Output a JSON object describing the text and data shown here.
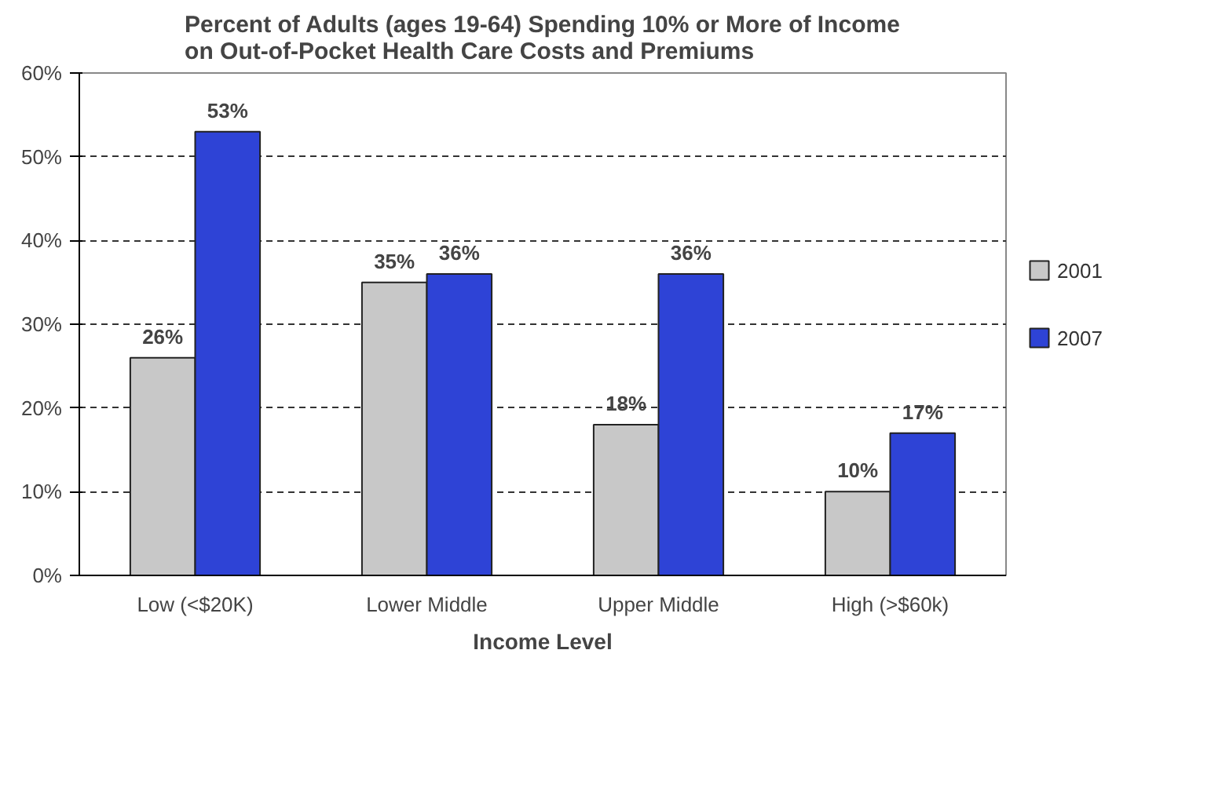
{
  "chart_data": {
    "type": "bar",
    "title": "Percent of Adults (ages 19-64) Spending 10% or More of Income\non Out-of-Pocket Health Care Costs and Premiums",
    "xlabel": "Income Level",
    "categories": [
      "Low (<$20K)",
      "Lower Middle",
      "Upper Middle",
      "High (>$60k)"
    ],
    "series": [
      {
        "name": "2001",
        "color": "#c8c8c8",
        "values": [
          26,
          35,
          18,
          10
        ],
        "value_labels": [
          "26%",
          "35%",
          "18%",
          "10%"
        ]
      },
      {
        "name": "2007",
        "color": "#2e43d6",
        "values": [
          53,
          36,
          36,
          17
        ],
        "value_labels": [
          "53%",
          "36%",
          "36%",
          "17%"
        ]
      }
    ],
    "ylim": [
      0,
      60
    ],
    "yticks": [
      {
        "value": 0,
        "label": "0%"
      },
      {
        "value": 10,
        "label": "10%"
      },
      {
        "value": 20,
        "label": "20%"
      },
      {
        "value": 30,
        "label": "30%"
      },
      {
        "value": 40,
        "label": "40%"
      },
      {
        "value": 50,
        "label": "50%"
      },
      {
        "value": 60,
        "label": "60%"
      }
    ],
    "grid": "y",
    "legend": "right"
  }
}
